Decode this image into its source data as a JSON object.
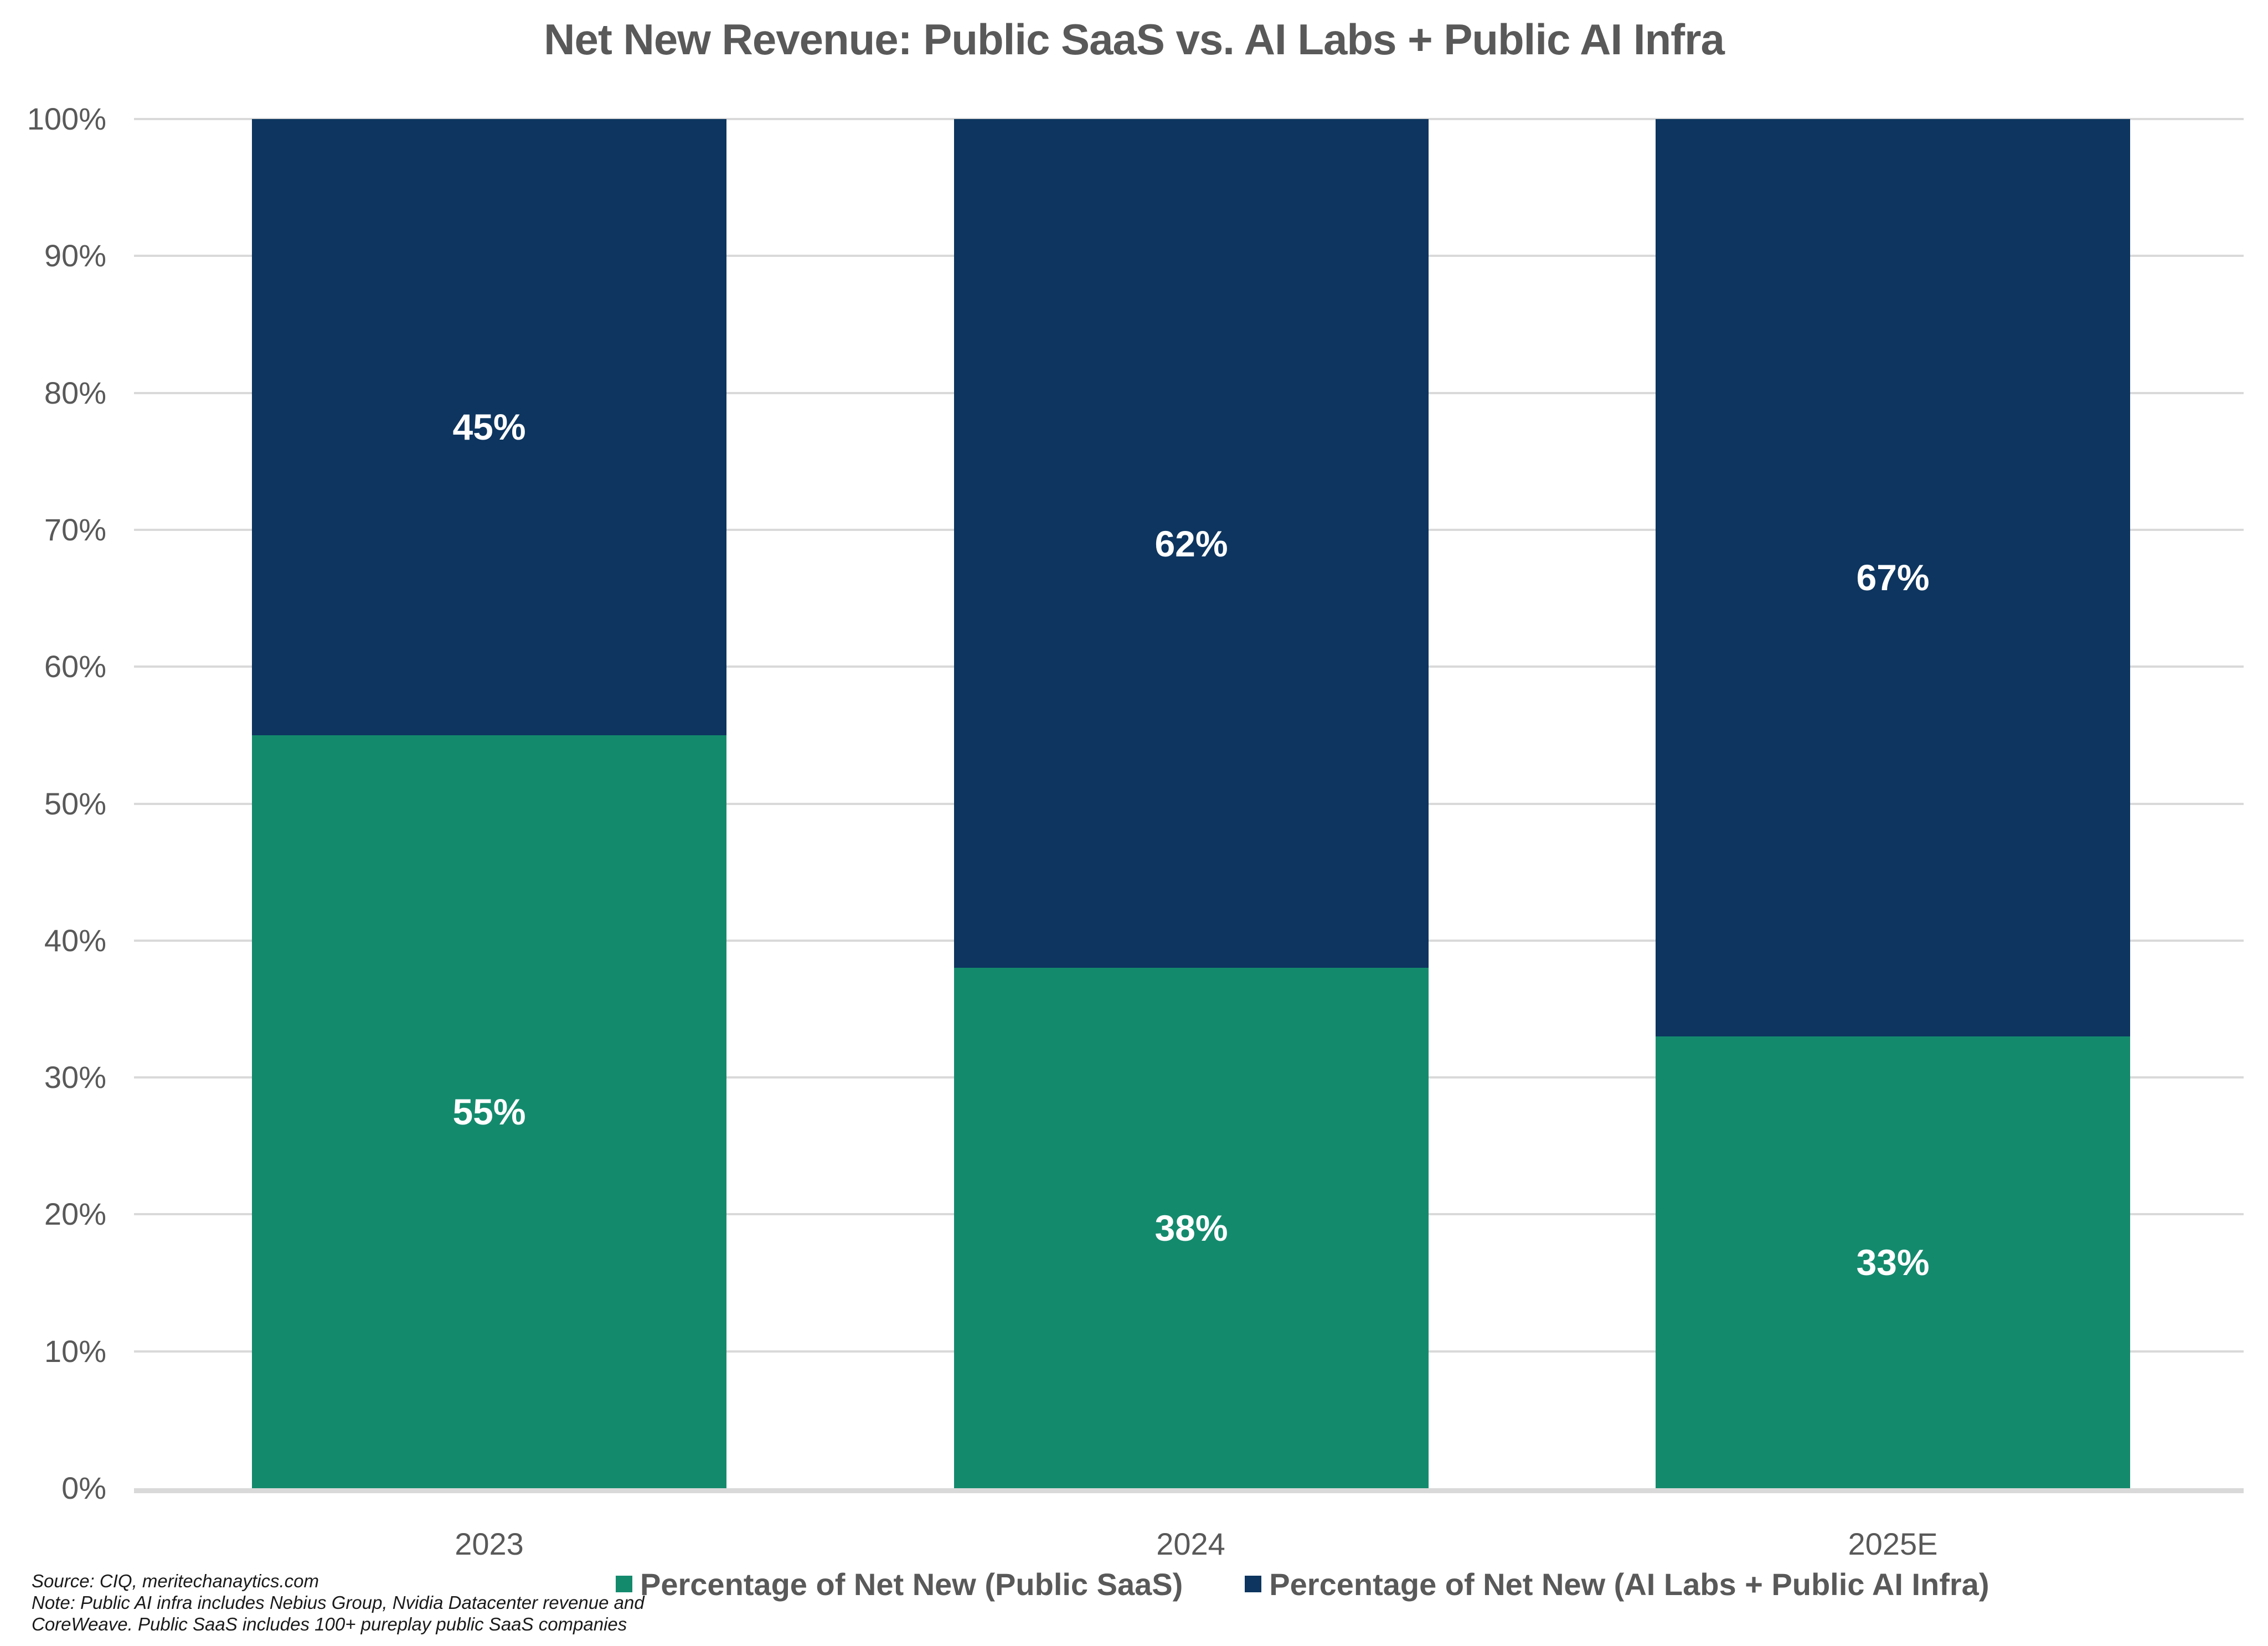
{
  "title": "Net New Revenue: Public SaaS vs. AI Labs + Public AI Infra",
  "chart_data": {
    "type": "bar",
    "stacked": true,
    "stack_unit": "percent",
    "title": "Net New Revenue: Public SaaS vs. AI Labs + Public AI Infra",
    "categories": [
      "2023",
      "2024",
      "2025E"
    ],
    "series": [
      {
        "name": "Percentage of Net New (Public SaaS)",
        "color": "#148a6d",
        "values": [
          55,
          38,
          33
        ],
        "labels": [
          "55%",
          "38%",
          "33%"
        ]
      },
      {
        "name": "Percentage of Net New (AI Labs + Public AI Infra)",
        "color": "#0d355f",
        "values": [
          45,
          62,
          67
        ],
        "labels": [
          "45%",
          "62%",
          "67%"
        ]
      }
    ],
    "ylim": [
      0,
      100
    ],
    "y_ticks": [
      "0%",
      "10%",
      "20%",
      "30%",
      "40%",
      "50%",
      "60%",
      "70%",
      "80%",
      "90%",
      "100%"
    ],
    "xlabel": "",
    "ylabel": "",
    "grid": true,
    "legend_position": "bottom",
    "data_label_color": "#ffffff"
  },
  "colors": {
    "title_text": "#595959",
    "axis_text": "#595959",
    "legend_text": "#595959",
    "gridline": "#d9d9d9"
  },
  "footnote": {
    "line1": "Source: CIQ, meritechanaytics.com",
    "line2": "Note: Public AI infra includes Nebius Group, Nvidia Datacenter revenue and",
    "line3": "CoreWeave. Public SaaS includes 100+ pureplay public SaaS companies"
  }
}
